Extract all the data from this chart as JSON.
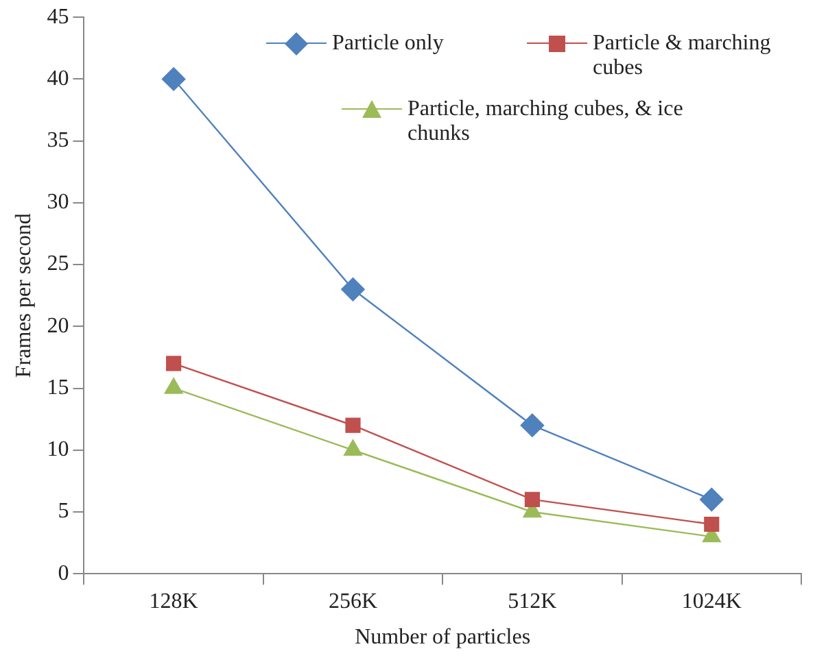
{
  "chart_data": {
    "type": "line",
    "xlabel": "Number of particles",
    "ylabel": "Frames per second",
    "categories": [
      "128K",
      "256K",
      "512K",
      "1024K"
    ],
    "series": [
      {
        "name": "Particle only",
        "color": "#4f81bd",
        "marker": "diamond",
        "values": [
          40,
          23,
          12,
          6
        ]
      },
      {
        "name": "Particle & marching cubes",
        "color": "#c0504d",
        "marker": "square",
        "values": [
          17,
          12,
          6,
          4
        ]
      },
      {
        "name": "Particle, marching cubes, & ice chunks",
        "color": "#9bbb59",
        "marker": "triangle",
        "values": [
          15,
          10,
          5,
          3
        ]
      }
    ],
    "ylim": [
      0,
      45
    ],
    "yticks": [
      0,
      5,
      10,
      15,
      20,
      25,
      30,
      35,
      40,
      45
    ],
    "grid": false,
    "legend": "top right"
  }
}
